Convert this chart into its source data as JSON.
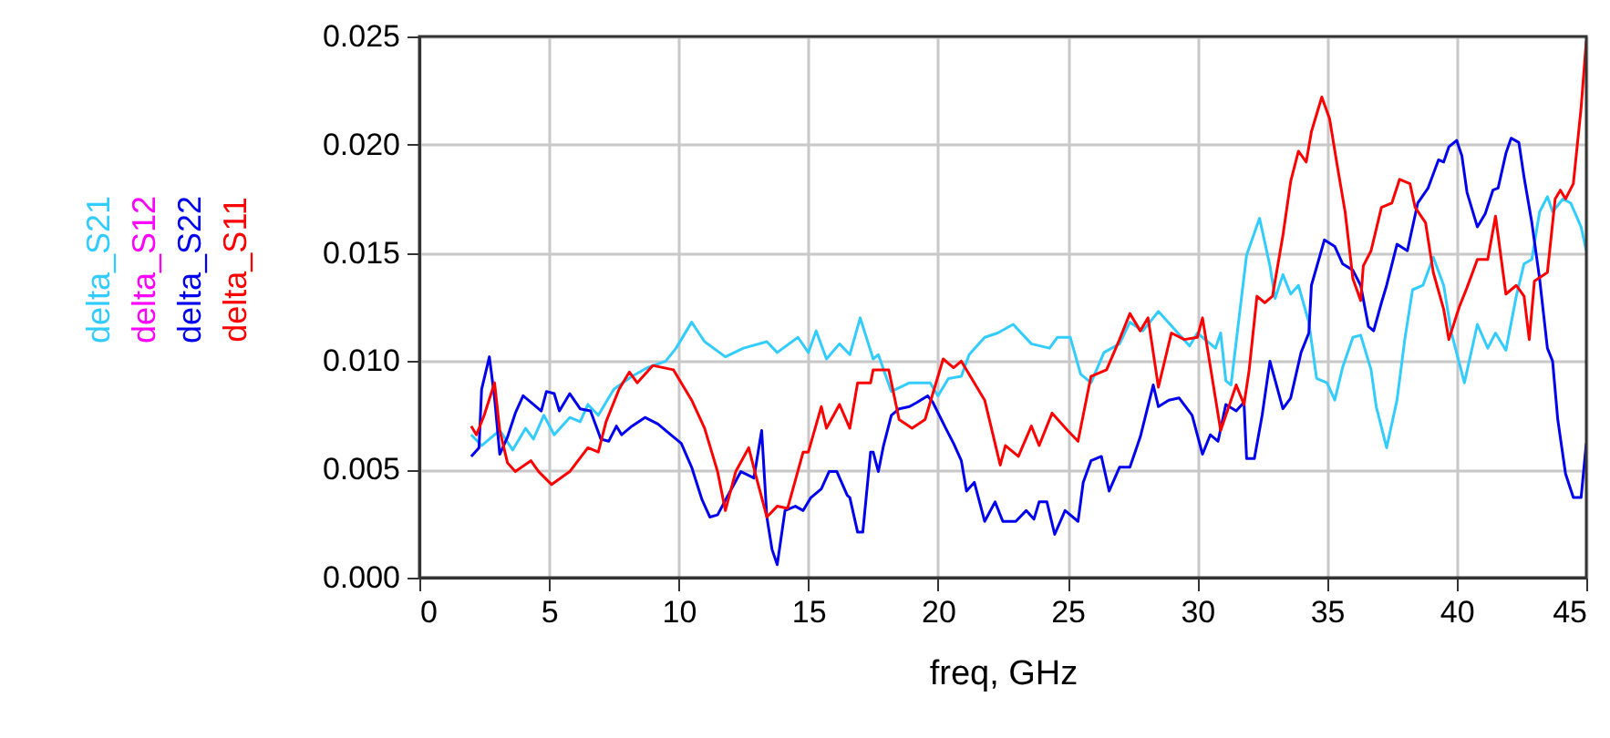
{
  "chart_data": {
    "type": "line",
    "xlabel": "freq, GHz",
    "xlim": [
      0,
      45
    ],
    "ylim": [
      0,
      0.025
    ],
    "xticks": [
      0,
      5,
      10,
      15,
      20,
      25,
      30,
      35,
      40,
      45
    ],
    "yticks": [
      {
        "value": 0,
        "label": "0.000"
      },
      {
        "value": 0.005,
        "label": "0.005"
      },
      {
        "value": 0.01,
        "label": "0.010"
      },
      {
        "value": 0.015,
        "label": "0.015"
      },
      {
        "value": 0.02,
        "label": "0.020"
      },
      {
        "value": 0.025,
        "label": "0.025"
      }
    ],
    "grid": true,
    "legend": "left",
    "marker": "none",
    "line_style": "solid",
    "series": [
      {
        "name": "delta_S21",
        "color": "#33ccff",
        "x": [
          2.0,
          2.4,
          3.1,
          3.6,
          4.1,
          4.4,
          4.8,
          5.2,
          5.8,
          6.2,
          6.5,
          6.9,
          7.5,
          8.2,
          8.8,
          9.5,
          9.9,
          10.5,
          11.0,
          11.8,
          12.5,
          13.4,
          13.8,
          14.6,
          15.0,
          15.3,
          15.7,
          16.2,
          16.6,
          17.0,
          17.5,
          17.7,
          18.2,
          18.9,
          19.7,
          20.0,
          20.4,
          20.9,
          21.2,
          21.8,
          22.3,
          22.9,
          23.6,
          24.3,
          24.6,
          25.1,
          25.5,
          25.9,
          26.4,
          27.0,
          27.4,
          27.9,
          28.5,
          29.1,
          29.7,
          30.0,
          30.7,
          30.9,
          31.1,
          31.3,
          31.9,
          32.4,
          32.8,
          33.0,
          33.3,
          33.6,
          33.9,
          34.3,
          34.6,
          35.0,
          35.3,
          35.6,
          36.0,
          36.3,
          36.7,
          36.9,
          37.3,
          37.7,
          38.0,
          38.3,
          38.7,
          39.1,
          39.5,
          39.8,
          40.3,
          40.8,
          41.2,
          41.5,
          41.9,
          42.3,
          42.6,
          42.9,
          43.2,
          43.5,
          43.7,
          44.1,
          44.4,
          44.8,
          45.0
        ],
        "values": [
          0.0066,
          0.0061,
          0.0068,
          0.0059,
          0.0069,
          0.0064,
          0.0075,
          0.0066,
          0.0074,
          0.0072,
          0.008,
          0.0075,
          0.0087,
          0.0093,
          0.0097,
          0.01,
          0.0106,
          0.0118,
          0.0109,
          0.0102,
          0.0106,
          0.0109,
          0.0104,
          0.0111,
          0.0104,
          0.0114,
          0.0101,
          0.0108,
          0.0103,
          0.012,
          0.0101,
          0.0103,
          0.0086,
          0.009,
          0.009,
          0.0084,
          0.0092,
          0.0093,
          0.0103,
          0.0111,
          0.0113,
          0.0117,
          0.0108,
          0.0106,
          0.0111,
          0.0111,
          0.0094,
          0.009,
          0.0104,
          0.0108,
          0.0118,
          0.0114,
          0.0123,
          0.0115,
          0.0107,
          0.0113,
          0.0106,
          0.0113,
          0.0091,
          0.0089,
          0.0149,
          0.0166,
          0.0144,
          0.0129,
          0.014,
          0.0131,
          0.0135,
          0.0118,
          0.0092,
          0.009,
          0.0082,
          0.0097,
          0.0111,
          0.0112,
          0.0096,
          0.0079,
          0.006,
          0.0082,
          0.011,
          0.0133,
          0.0135,
          0.0148,
          0.0135,
          0.0113,
          0.009,
          0.0117,
          0.0106,
          0.0113,
          0.0105,
          0.013,
          0.0145,
          0.0147,
          0.0169,
          0.0176,
          0.0169,
          0.0175,
          0.0173,
          0.0162,
          0.0151
        ]
      },
      {
        "name": "delta_S12",
        "color": "#ff00ff"
      },
      {
        "name": "delta_S22",
        "color": "#0000ee",
        "x": [
          2.0,
          2.3,
          2.4,
          2.7,
          2.9,
          3.1,
          3.4,
          3.7,
          4.0,
          4.4,
          4.7,
          4.9,
          5.2,
          5.4,
          5.8,
          6.2,
          6.6,
          7.0,
          7.3,
          7.6,
          7.8,
          8.2,
          8.7,
          9.2,
          9.8,
          10.1,
          10.5,
          10.9,
          11.2,
          11.5,
          11.9,
          12.4,
          12.9,
          13.2,
          13.4,
          13.6,
          13.8,
          14.1,
          14.5,
          14.8,
          15.1,
          15.5,
          15.8,
          16.1,
          16.5,
          16.6,
          16.9,
          17.1,
          17.4,
          17.5,
          17.7,
          17.9,
          18.2,
          18.5,
          18.9,
          19.2,
          19.6,
          19.8,
          20.3,
          20.6,
          20.9,
          21.1,
          21.4,
          21.8,
          22.2,
          22.5,
          23.0,
          23.4,
          23.7,
          23.9,
          24.2,
          24.5,
          24.9,
          25.4,
          25.6,
          25.9,
          26.3,
          26.6,
          27.0,
          27.4,
          27.8,
          28.3,
          28.5,
          28.9,
          29.3,
          29.8,
          30.2,
          30.5,
          30.8,
          31.1,
          31.5,
          31.8,
          31.9,
          32.2,
          32.5,
          32.8,
          33.3,
          33.6,
          34.0,
          34.3,
          34.4,
          34.9,
          35.3,
          35.6,
          36.0,
          36.3,
          36.6,
          36.8,
          37.1,
          37.3,
          37.7,
          38.1,
          38.5,
          38.9,
          39.3,
          39.5,
          39.7,
          40.0,
          40.2,
          40.4,
          40.8,
          41.1,
          41.4,
          41.6,
          41.9,
          42.1,
          42.4,
          42.6,
          42.9,
          43.2,
          43.5,
          43.7,
          43.9,
          44.2,
          44.5,
          44.8,
          45.0
        ],
        "values": [
          0.0056,
          0.006,
          0.0087,
          0.0102,
          0.0083,
          0.0057,
          0.0065,
          0.0076,
          0.0084,
          0.008,
          0.0077,
          0.0086,
          0.0085,
          0.0077,
          0.0085,
          0.0078,
          0.0077,
          0.0064,
          0.0063,
          0.007,
          0.0066,
          0.007,
          0.0074,
          0.0071,
          0.0065,
          0.0062,
          0.0051,
          0.0036,
          0.0028,
          0.0029,
          0.0038,
          0.0049,
          0.0046,
          0.0068,
          0.0028,
          0.0013,
          0.0006,
          0.0031,
          0.0033,
          0.0031,
          0.0037,
          0.0041,
          0.0049,
          0.0049,
          0.0038,
          0.0037,
          0.0021,
          0.0021,
          0.0058,
          0.0058,
          0.0049,
          0.0061,
          0.0075,
          0.0078,
          0.0079,
          0.0081,
          0.0084,
          0.0081,
          0.0069,
          0.0062,
          0.0054,
          0.004,
          0.0044,
          0.0026,
          0.0035,
          0.0026,
          0.0026,
          0.0031,
          0.0027,
          0.0035,
          0.0035,
          0.002,
          0.0031,
          0.0026,
          0.0044,
          0.0054,
          0.0056,
          0.004,
          0.0051,
          0.0051,
          0.0065,
          0.0089,
          0.0079,
          0.0082,
          0.0083,
          0.0075,
          0.0057,
          0.0066,
          0.0063,
          0.008,
          0.0077,
          0.0081,
          0.0055,
          0.0055,
          0.0075,
          0.01,
          0.0078,
          0.0083,
          0.0104,
          0.0113,
          0.0135,
          0.0156,
          0.0153,
          0.0145,
          0.0142,
          0.0135,
          0.0116,
          0.0114,
          0.0127,
          0.0135,
          0.0154,
          0.0151,
          0.0173,
          0.018,
          0.0193,
          0.0192,
          0.0199,
          0.0202,
          0.0195,
          0.0178,
          0.0162,
          0.0168,
          0.0179,
          0.018,
          0.0196,
          0.0203,
          0.0201,
          0.0185,
          0.0164,
          0.0138,
          0.0106,
          0.01,
          0.0073,
          0.0048,
          0.0037,
          0.0037,
          0.0062
        ]
      },
      {
        "name": "delta_S11",
        "color": "#ff0000",
        "x": [
          2.0,
          2.2,
          2.5,
          2.9,
          3.1,
          3.4,
          3.7,
          4.3,
          4.6,
          5.1,
          5.8,
          6.5,
          6.9,
          7.2,
          7.7,
          8.1,
          8.4,
          9.0,
          9.8,
          10.5,
          11.0,
          11.5,
          11.8,
          12.2,
          12.7,
          13.0,
          13.4,
          13.8,
          14.2,
          14.8,
          15.0,
          15.5,
          15.7,
          16.2,
          16.6,
          16.9,
          17.4,
          17.5,
          18.1,
          18.5,
          19.0,
          19.5,
          20.2,
          20.6,
          20.9,
          21.8,
          22.2,
          22.4,
          22.6,
          23.1,
          23.6,
          23.9,
          24.4,
          25.0,
          25.4,
          25.9,
          26.5,
          27.0,
          27.4,
          27.8,
          28.1,
          28.5,
          29.0,
          29.5,
          30.0,
          30.2,
          30.9,
          31.5,
          31.8,
          32.0,
          32.3,
          32.6,
          32.9,
          33.3,
          33.6,
          33.9,
          34.2,
          34.4,
          34.8,
          35.1,
          35.4,
          35.7,
          36.0,
          36.3,
          36.4,
          36.7,
          37.1,
          37.5,
          37.8,
          38.2,
          38.4,
          38.8,
          39.1,
          39.5,
          39.7,
          40.1,
          40.4,
          40.8,
          41.2,
          41.5,
          41.9,
          42.3,
          42.6,
          42.8,
          43.0,
          43.5,
          43.8,
          44.0,
          44.2,
          44.5,
          44.8,
          45.0
        ],
        "values": [
          0.007,
          0.0066,
          0.0075,
          0.009,
          0.0068,
          0.0053,
          0.0049,
          0.0054,
          0.0049,
          0.0043,
          0.0049,
          0.006,
          0.0058,
          0.0072,
          0.0087,
          0.0095,
          0.009,
          0.0098,
          0.0096,
          0.0082,
          0.0069,
          0.0049,
          0.0031,
          0.0049,
          0.006,
          0.0046,
          0.0028,
          0.0033,
          0.0032,
          0.0058,
          0.0058,
          0.0079,
          0.0069,
          0.008,
          0.0069,
          0.009,
          0.009,
          0.0096,
          0.0096,
          0.0073,
          0.0069,
          0.0073,
          0.0101,
          0.0097,
          0.01,
          0.0082,
          0.0062,
          0.0052,
          0.0061,
          0.0056,
          0.007,
          0.0061,
          0.0076,
          0.0068,
          0.0063,
          0.0093,
          0.0096,
          0.011,
          0.0122,
          0.0114,
          0.012,
          0.0088,
          0.0113,
          0.011,
          0.0111,
          0.012,
          0.0068,
          0.0089,
          0.008,
          0.0096,
          0.013,
          0.0127,
          0.013,
          0.0158,
          0.0183,
          0.0197,
          0.0192,
          0.0206,
          0.0222,
          0.0212,
          0.019,
          0.0169,
          0.0138,
          0.0128,
          0.0144,
          0.0151,
          0.0171,
          0.0173,
          0.0184,
          0.0182,
          0.0171,
          0.0164,
          0.0141,
          0.0124,
          0.011,
          0.0125,
          0.0134,
          0.0147,
          0.0147,
          0.0167,
          0.0131,
          0.0135,
          0.013,
          0.011,
          0.0137,
          0.0141,
          0.0175,
          0.0179,
          0.0175,
          0.0182,
          0.0217,
          0.0248
        ]
      }
    ]
  }
}
